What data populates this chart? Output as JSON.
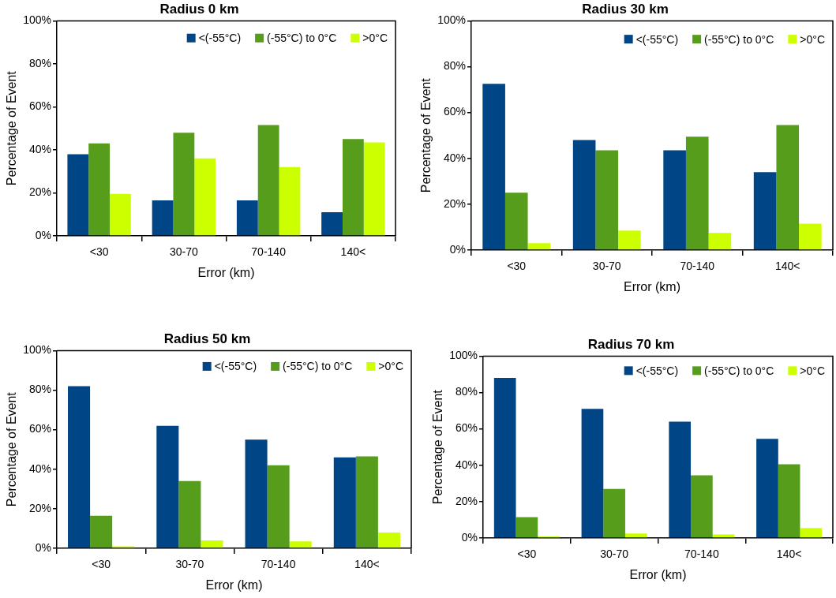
{
  "chart_data": [
    {
      "type": "bar",
      "title": "Radius 0 km",
      "xlabel": "Error (km)",
      "ylabel": "Percentage of Event",
      "categories": [
        "<30",
        "30-70",
        "70-140",
        "140<"
      ],
      "series": [
        {
          "name": "<(-55°C)",
          "color": "#004586",
          "values": [
            38,
            16.5,
            16.5,
            11
          ]
        },
        {
          "name": "(-55°C) to 0°C",
          "color": "#579d1c",
          "values": [
            43,
            48,
            51.5,
            45
          ]
        },
        {
          "name": ">0°C",
          "color": "#ccff00",
          "values": [
            19.5,
            36,
            32,
            43.5
          ]
        }
      ],
      "ylim": [
        0,
        100
      ],
      "yticks": [
        {
          "value": 0,
          "label": "0%"
        },
        {
          "value": 20,
          "label": "20%"
        },
        {
          "value": 40,
          "label": "40%"
        },
        {
          "value": 60,
          "label": "60%"
        },
        {
          "value": 80,
          "label": "80%"
        },
        {
          "value": 100,
          "label": "100%"
        }
      ],
      "grid": false,
      "legend": "top right"
    },
    {
      "type": "bar",
      "title": "Radius 30 km",
      "xlabel": "Error (km)",
      "ylabel": "Percentage of Event",
      "categories": [
        "<30",
        "30-70",
        "70-140",
        "140<"
      ],
      "series": [
        {
          "name": "<(-55°C)",
          "color": "#004586",
          "values": [
            72.5,
            48,
            43.5,
            34
          ]
        },
        {
          "name": "(-55°C) to 0°C",
          "color": "#579d1c",
          "values": [
            25,
            43.5,
            49.5,
            54.5
          ]
        },
        {
          "name": ">0°C",
          "color": "#ccff00",
          "values": [
            3,
            8.5,
            7.5,
            11.5
          ]
        }
      ],
      "ylim": [
        0,
        100
      ],
      "yticks": [
        {
          "value": 0,
          "label": "0%"
        },
        {
          "value": 20,
          "label": "20%"
        },
        {
          "value": 40,
          "label": "40%"
        },
        {
          "value": 60,
          "label": "60%"
        },
        {
          "value": 80,
          "label": "80%"
        },
        {
          "value": 100,
          "label": "100%"
        }
      ],
      "grid": false,
      "legend": "top right"
    },
    {
      "type": "bar",
      "title": "Radius 50 km",
      "xlabel": "Error (km)",
      "ylabel": "Percentage of Event",
      "categories": [
        "<30",
        "30-70",
        "70-140",
        "140<"
      ],
      "series": [
        {
          "name": "<(-55°C)",
          "color": "#004586",
          "values": [
            82,
            62,
            55,
            46
          ]
        },
        {
          "name": "(-55°C) to 0°C",
          "color": "#579d1c",
          "values": [
            16.5,
            34,
            42,
            46.5
          ]
        },
        {
          "name": ">0°C",
          "color": "#ccff00",
          "values": [
            1,
            4,
            3.5,
            8
          ]
        }
      ],
      "ylim": [
        0,
        100
      ],
      "yticks": [
        {
          "value": 0,
          "label": "0%"
        },
        {
          "value": 20,
          "label": "20%"
        },
        {
          "value": 40,
          "label": "40%"
        },
        {
          "value": 60,
          "label": "60%"
        },
        {
          "value": 80,
          "label": "80%"
        },
        {
          "value": 100,
          "label": "100%"
        }
      ],
      "grid": false,
      "legend": "top right"
    },
    {
      "type": "bar",
      "title": "Radius 70 km",
      "xlabel": "Error (km)",
      "ylabel": "Percentage of Event",
      "categories": [
        "<30",
        "30-70",
        "70-140",
        "140<"
      ],
      "series": [
        {
          "name": "<(-55°C)",
          "color": "#004586",
          "values": [
            88,
            71,
            64,
            54.5
          ]
        },
        {
          "name": "(-55°C) to 0°C",
          "color": "#579d1c",
          "values": [
            11.5,
            27,
            34.5,
            40.5
          ]
        },
        {
          "name": ">0°C",
          "color": "#ccff00",
          "values": [
            1,
            2.5,
            2,
            5.5
          ]
        }
      ],
      "ylim": [
        0,
        100
      ],
      "yticks": [
        {
          "value": 0,
          "label": "0%"
        },
        {
          "value": 20,
          "label": "20%"
        },
        {
          "value": 40,
          "label": "40%"
        },
        {
          "value": 60,
          "label": "60%"
        },
        {
          "value": 80,
          "label": "80%"
        },
        {
          "value": 100,
          "label": "100%"
        }
      ],
      "grid": false,
      "legend": "top right"
    }
  ]
}
